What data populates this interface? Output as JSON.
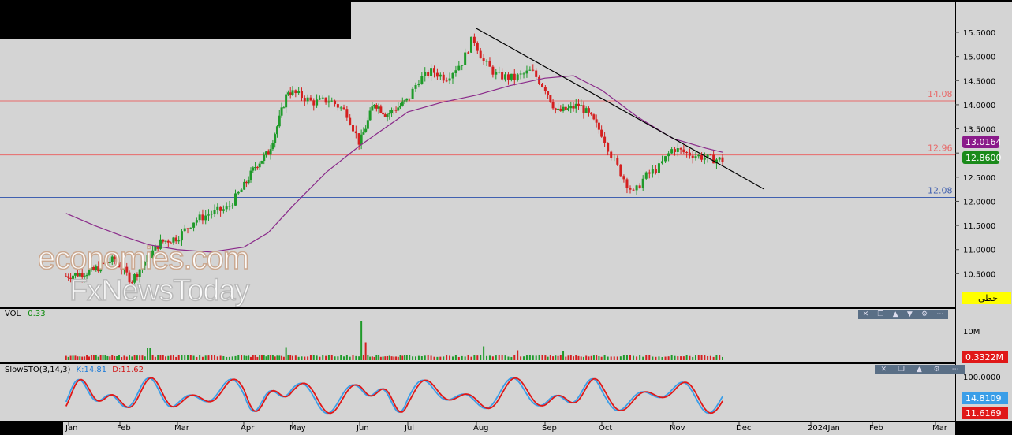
{
  "chart_data": {
    "type": "candlestick",
    "x_axis_labels": [
      "Jan",
      "Feb",
      "Mar",
      "Apr",
      "May",
      "Jun",
      "Jul",
      "Aug",
      "Sep",
      "Oct",
      "Nov",
      "Dec",
      "2024Jan",
      "Feb",
      "Mar"
    ],
    "y_ticks": [
      "15.5000",
      "15.0000",
      "14.5000",
      "14.0000",
      "13.5000",
      "13.0000",
      "12.5000",
      "12.0000",
      "11.5000",
      "11.0000",
      "10.5000"
    ],
    "ylim": [
      9.9,
      15.95
    ],
    "horizontal_levels": [
      {
        "label": "14.08",
        "value": 14.08,
        "color": "#e86a6a"
      },
      {
        "label": "12.96",
        "value": 12.96,
        "color": "#e86a6a"
      },
      {
        "label": "12.08",
        "value": 12.08,
        "color": "#4060b0"
      }
    ],
    "trendline": {
      "start": {
        "month_index": 7.0,
        "value": 15.58
      },
      "end": {
        "month_index": 11.35,
        "value": 12.25
      }
    },
    "price_path": [
      {
        "m": -0.05,
        "v": 10.45
      },
      {
        "m": 0.2,
        "v": 10.5
      },
      {
        "m": 0.45,
        "v": 10.55
      },
      {
        "m": 0.7,
        "v": 10.7
      },
      {
        "m": 0.9,
        "v": 10.8
      },
      {
        "m": 1.05,
        "v": 10.6
      },
      {
        "m": 1.2,
        "v": 10.35
      },
      {
        "m": 1.4,
        "v": 10.7
      },
      {
        "m": 1.7,
        "v": 11.15
      },
      {
        "m": 2.0,
        "v": 11.25
      },
      {
        "m": 2.25,
        "v": 11.6
      },
      {
        "m": 2.5,
        "v": 11.75
      },
      {
        "m": 2.75,
        "v": 11.85
      },
      {
        "m": 3.0,
        "v": 12.3
      },
      {
        "m": 3.25,
        "v": 12.75
      },
      {
        "m": 3.5,
        "v": 13.0
      },
      {
        "m": 3.7,
        "v": 13.6
      },
      {
        "m": 3.9,
        "v": 14.3
      },
      {
        "m": 4.1,
        "v": 14.2
      },
      {
        "m": 4.3,
        "v": 14.05
      },
      {
        "m": 4.55,
        "v": 14.1
      },
      {
        "m": 4.8,
        "v": 13.85
      },
      {
        "m": 5.0,
        "v": 13.2
      },
      {
        "m": 5.15,
        "v": 13.6
      },
      {
        "m": 5.3,
        "v": 14.05
      },
      {
        "m": 5.55,
        "v": 13.8
      },
      {
        "m": 5.8,
        "v": 13.95
      },
      {
        "m": 6.0,
        "v": 14.1
      },
      {
        "m": 6.15,
        "v": 14.5
      },
      {
        "m": 6.35,
        "v": 14.7
      },
      {
        "m": 6.55,
        "v": 14.55
      },
      {
        "m": 6.8,
        "v": 14.9
      },
      {
        "m": 6.95,
        "v": 15.4
      },
      {
        "m": 7.1,
        "v": 14.9
      },
      {
        "m": 7.3,
        "v": 14.6
      },
      {
        "m": 7.55,
        "v": 14.55
      },
      {
        "m": 7.8,
        "v": 14.7
      },
      {
        "m": 8.0,
        "v": 14.35
      },
      {
        "m": 8.2,
        "v": 13.85
      },
      {
        "m": 8.4,
        "v": 13.9
      },
      {
        "m": 8.6,
        "v": 14.0
      },
      {
        "m": 8.8,
        "v": 13.75
      },
      {
        "m": 9.0,
        "v": 13.4
      },
      {
        "m": 9.15,
        "v": 12.9
      },
      {
        "m": 9.3,
        "v": 12.5
      },
      {
        "m": 9.45,
        "v": 12.15
      },
      {
        "m": 9.6,
        "v": 12.5
      },
      {
        "m": 9.8,
        "v": 12.7
      },
      {
        "m": 10.0,
        "v": 13.1
      },
      {
        "m": 10.2,
        "v": 13.0
      },
      {
        "m": 10.35,
        "v": 12.95
      },
      {
        "m": 10.55,
        "v": 12.88
      },
      {
        "m": 10.75,
        "v": 12.86
      }
    ],
    "moving_average": [
      {
        "m": -0.05,
        "v": 11.75
      },
      {
        "m": 0.5,
        "v": 11.5
      },
      {
        "m": 1.0,
        "v": 11.3
      },
      {
        "m": 1.5,
        "v": 11.1
      },
      {
        "m": 2.0,
        "v": 11.0
      },
      {
        "m": 2.5,
        "v": 10.95
      },
      {
        "m": 3.0,
        "v": 11.05
      },
      {
        "m": 3.5,
        "v": 11.35
      },
      {
        "m": 4.0,
        "v": 11.9
      },
      {
        "m": 4.5,
        "v": 12.6
      },
      {
        "m": 5.0,
        "v": 13.15
      },
      {
        "m": 5.5,
        "v": 13.5
      },
      {
        "m": 6.0,
        "v": 13.85
      },
      {
        "m": 6.5,
        "v": 14.05
      },
      {
        "m": 7.0,
        "v": 14.2
      },
      {
        "m": 7.5,
        "v": 14.4
      },
      {
        "m": 8.0,
        "v": 14.55
      },
      {
        "m": 8.5,
        "v": 14.6
      },
      {
        "m": 9.0,
        "v": 14.3
      },
      {
        "m": 9.5,
        "v": 13.75
      },
      {
        "m": 10.0,
        "v": 13.3
      },
      {
        "m": 10.5,
        "v": 13.1
      },
      {
        "m": 10.75,
        "v": 13.0164
      }
    ],
    "last_price": "12.8600",
    "ma_value": "13.0164",
    "badge_text": "خطي",
    "volume": {
      "label": "VOL",
      "value": "0.33",
      "axis_tick": "10M",
      "last": "0.3322M",
      "spikes": [
        {
          "m": 5.05,
          "rel": 1.0
        },
        {
          "m": 5.12,
          "rel": 0.45
        },
        {
          "m": 3.88,
          "rel": 0.33
        },
        {
          "m": 7.1,
          "rel": 0.35
        },
        {
          "m": 1.5,
          "rel": 0.3
        },
        {
          "m": 7.6,
          "rel": 0.25
        },
        {
          "m": 8.3,
          "rel": 0.22
        }
      ]
    },
    "stochastic": {
      "label": "SlowSTO(3,14,3)",
      "k_label": "K:14.81",
      "d_label": "D:11.62",
      "ticks": [
        "100.0000"
      ],
      "k_last": "14.8109",
      "d_last": "11.6169",
      "k_color": "#3a9ee8",
      "d_color": "#e01818"
    }
  },
  "colors": {
    "up": "#1f9a2a",
    "down": "#d42020",
    "ma": "#8a2a8a",
    "trend": "#000000",
    "bg": "#d4d4d4"
  },
  "watermark": {
    "line1": "economies.com",
    "line2": "FxNewsToday"
  }
}
